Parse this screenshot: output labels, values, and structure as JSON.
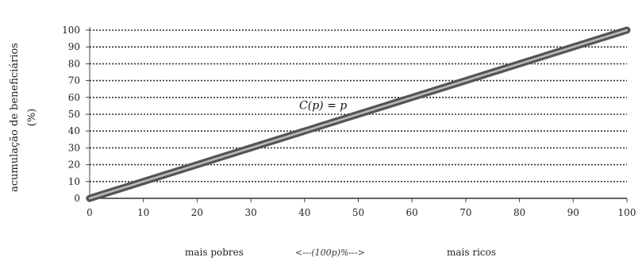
{
  "chart_data": {
    "type": "line",
    "title": "",
    "ylabel_line1": "acumulação de beneficiários",
    "ylabel_line2": "(%)",
    "xlabel_left": "mais pobres",
    "xlabel_mid": "<---(100p)%--->",
    "xlabel_right": "mais ricos",
    "annotation": "C(p) = p",
    "xlim": [
      0,
      100
    ],
    "ylim": [
      0,
      100
    ],
    "xticks": [
      "0",
      "10",
      "20",
      "30",
      "40",
      "50",
      "60",
      "70",
      "80",
      "90",
      "100"
    ],
    "yticks": [
      "0",
      "10",
      "20",
      "30",
      "40",
      "50",
      "60",
      "70",
      "80",
      "90",
      "100"
    ],
    "grid": "horizontal dotted",
    "legend": "none",
    "series": [
      {
        "x": [
          0,
          100
        ],
        "y": [
          0,
          100
        ]
      }
    ],
    "line_color": "#555555"
  }
}
